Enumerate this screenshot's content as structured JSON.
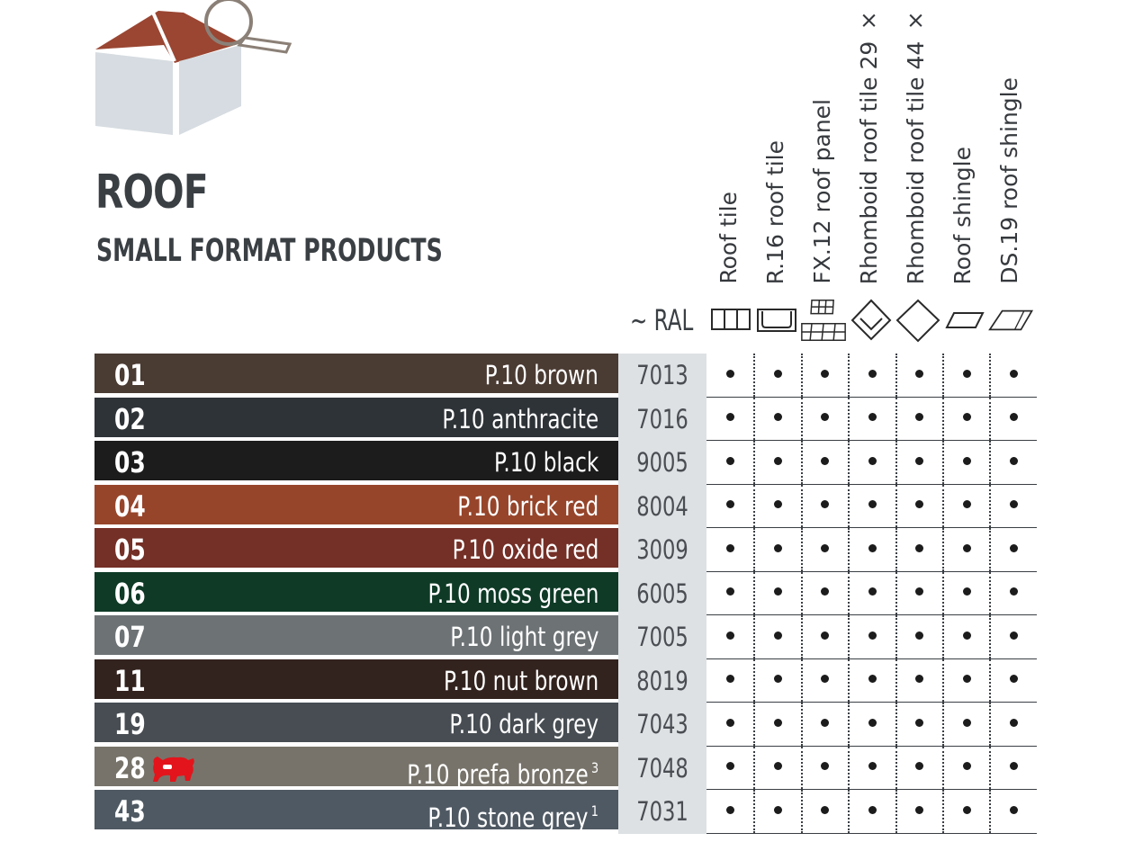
{
  "header": {
    "title": "ROOF",
    "subtitle": "SMALL FORMAT PRODUCTS",
    "ral_label": "~ RAL"
  },
  "columns": [
    {
      "label": "Roof tile",
      "icon": "roof-tile-icon"
    },
    {
      "label": "R.16 roof tile",
      "icon": "r16-roof-tile-icon"
    },
    {
      "label": "FX.12 roof panel",
      "icon": "fx12-roof-panel-icon"
    },
    {
      "label": "Rhomboid roof tile 29 × 29",
      "icon": "rhomboid-29-icon"
    },
    {
      "label": "Rhomboid roof tile 44 × 44",
      "icon": "rhomboid-44-icon"
    },
    {
      "label": "Roof shingle",
      "icon": "roof-shingle-icon"
    },
    {
      "label": "DS.19 roof shingle",
      "icon": "ds19-roof-shingle-icon"
    }
  ],
  "rows": [
    {
      "code": "01",
      "name": "P.10 brown",
      "sup": "",
      "ral": "7013",
      "color": "#4a3b33",
      "availability": [
        true,
        true,
        true,
        true,
        true,
        true,
        true
      ]
    },
    {
      "code": "02",
      "name": "P.10 anthracite",
      "sup": "",
      "ral": "7016",
      "color": "#2e3338",
      "availability": [
        true,
        true,
        true,
        true,
        true,
        true,
        true
      ]
    },
    {
      "code": "03",
      "name": "P.10 black",
      "sup": "",
      "ral": "9005",
      "color": "#1c1c1c",
      "availability": [
        true,
        true,
        true,
        true,
        true,
        true,
        true
      ]
    },
    {
      "code": "04",
      "name": "P.10 brick red",
      "sup": "",
      "ral": "8004",
      "color": "#96452b",
      "availability": [
        true,
        true,
        true,
        true,
        true,
        true,
        true
      ]
    },
    {
      "code": "05",
      "name": "P.10 oxide red",
      "sup": "",
      "ral": "3009",
      "color": "#742f26",
      "availability": [
        true,
        true,
        true,
        true,
        true,
        true,
        true
      ]
    },
    {
      "code": "06",
      "name": "P.10 moss green",
      "sup": "",
      "ral": "6005",
      "color": "#0e3a26",
      "availability": [
        true,
        true,
        true,
        true,
        true,
        true,
        true
      ]
    },
    {
      "code": "07",
      "name": "P.10 light grey",
      "sup": "",
      "ral": "7005",
      "color": "#6d7275",
      "availability": [
        true,
        true,
        true,
        true,
        true,
        true,
        true
      ]
    },
    {
      "code": "11",
      "name": "P.10 nut brown",
      "sup": "",
      "ral": "8019",
      "color": "#33231e",
      "availability": [
        true,
        true,
        true,
        true,
        true,
        true,
        true
      ]
    },
    {
      "code": "19",
      "name": "P.10 dark grey",
      "sup": "",
      "ral": "7043",
      "color": "#474d53",
      "availability": [
        true,
        true,
        true,
        true,
        true,
        true,
        true
      ]
    },
    {
      "code": "28",
      "name": "P.10 prefa bronze",
      "sup": "3",
      "ral": "7048",
      "color": "#77736a",
      "badge": "prefa-bull-icon",
      "availability": [
        true,
        true,
        true,
        true,
        true,
        true,
        true
      ]
    },
    {
      "code": "43",
      "name": "P.10 stone grey",
      "sup": "1",
      "ral": "7031",
      "color": "#4f5963",
      "availability": [
        true,
        true,
        true,
        true,
        true,
        true,
        true
      ]
    }
  ],
  "colors": {
    "text_dark": "#3a3f44",
    "ral_background": "#dde1e4",
    "roof_red": "#9a4632",
    "box_grey": "#d7dde2",
    "bull_red": "#e3141b"
  }
}
